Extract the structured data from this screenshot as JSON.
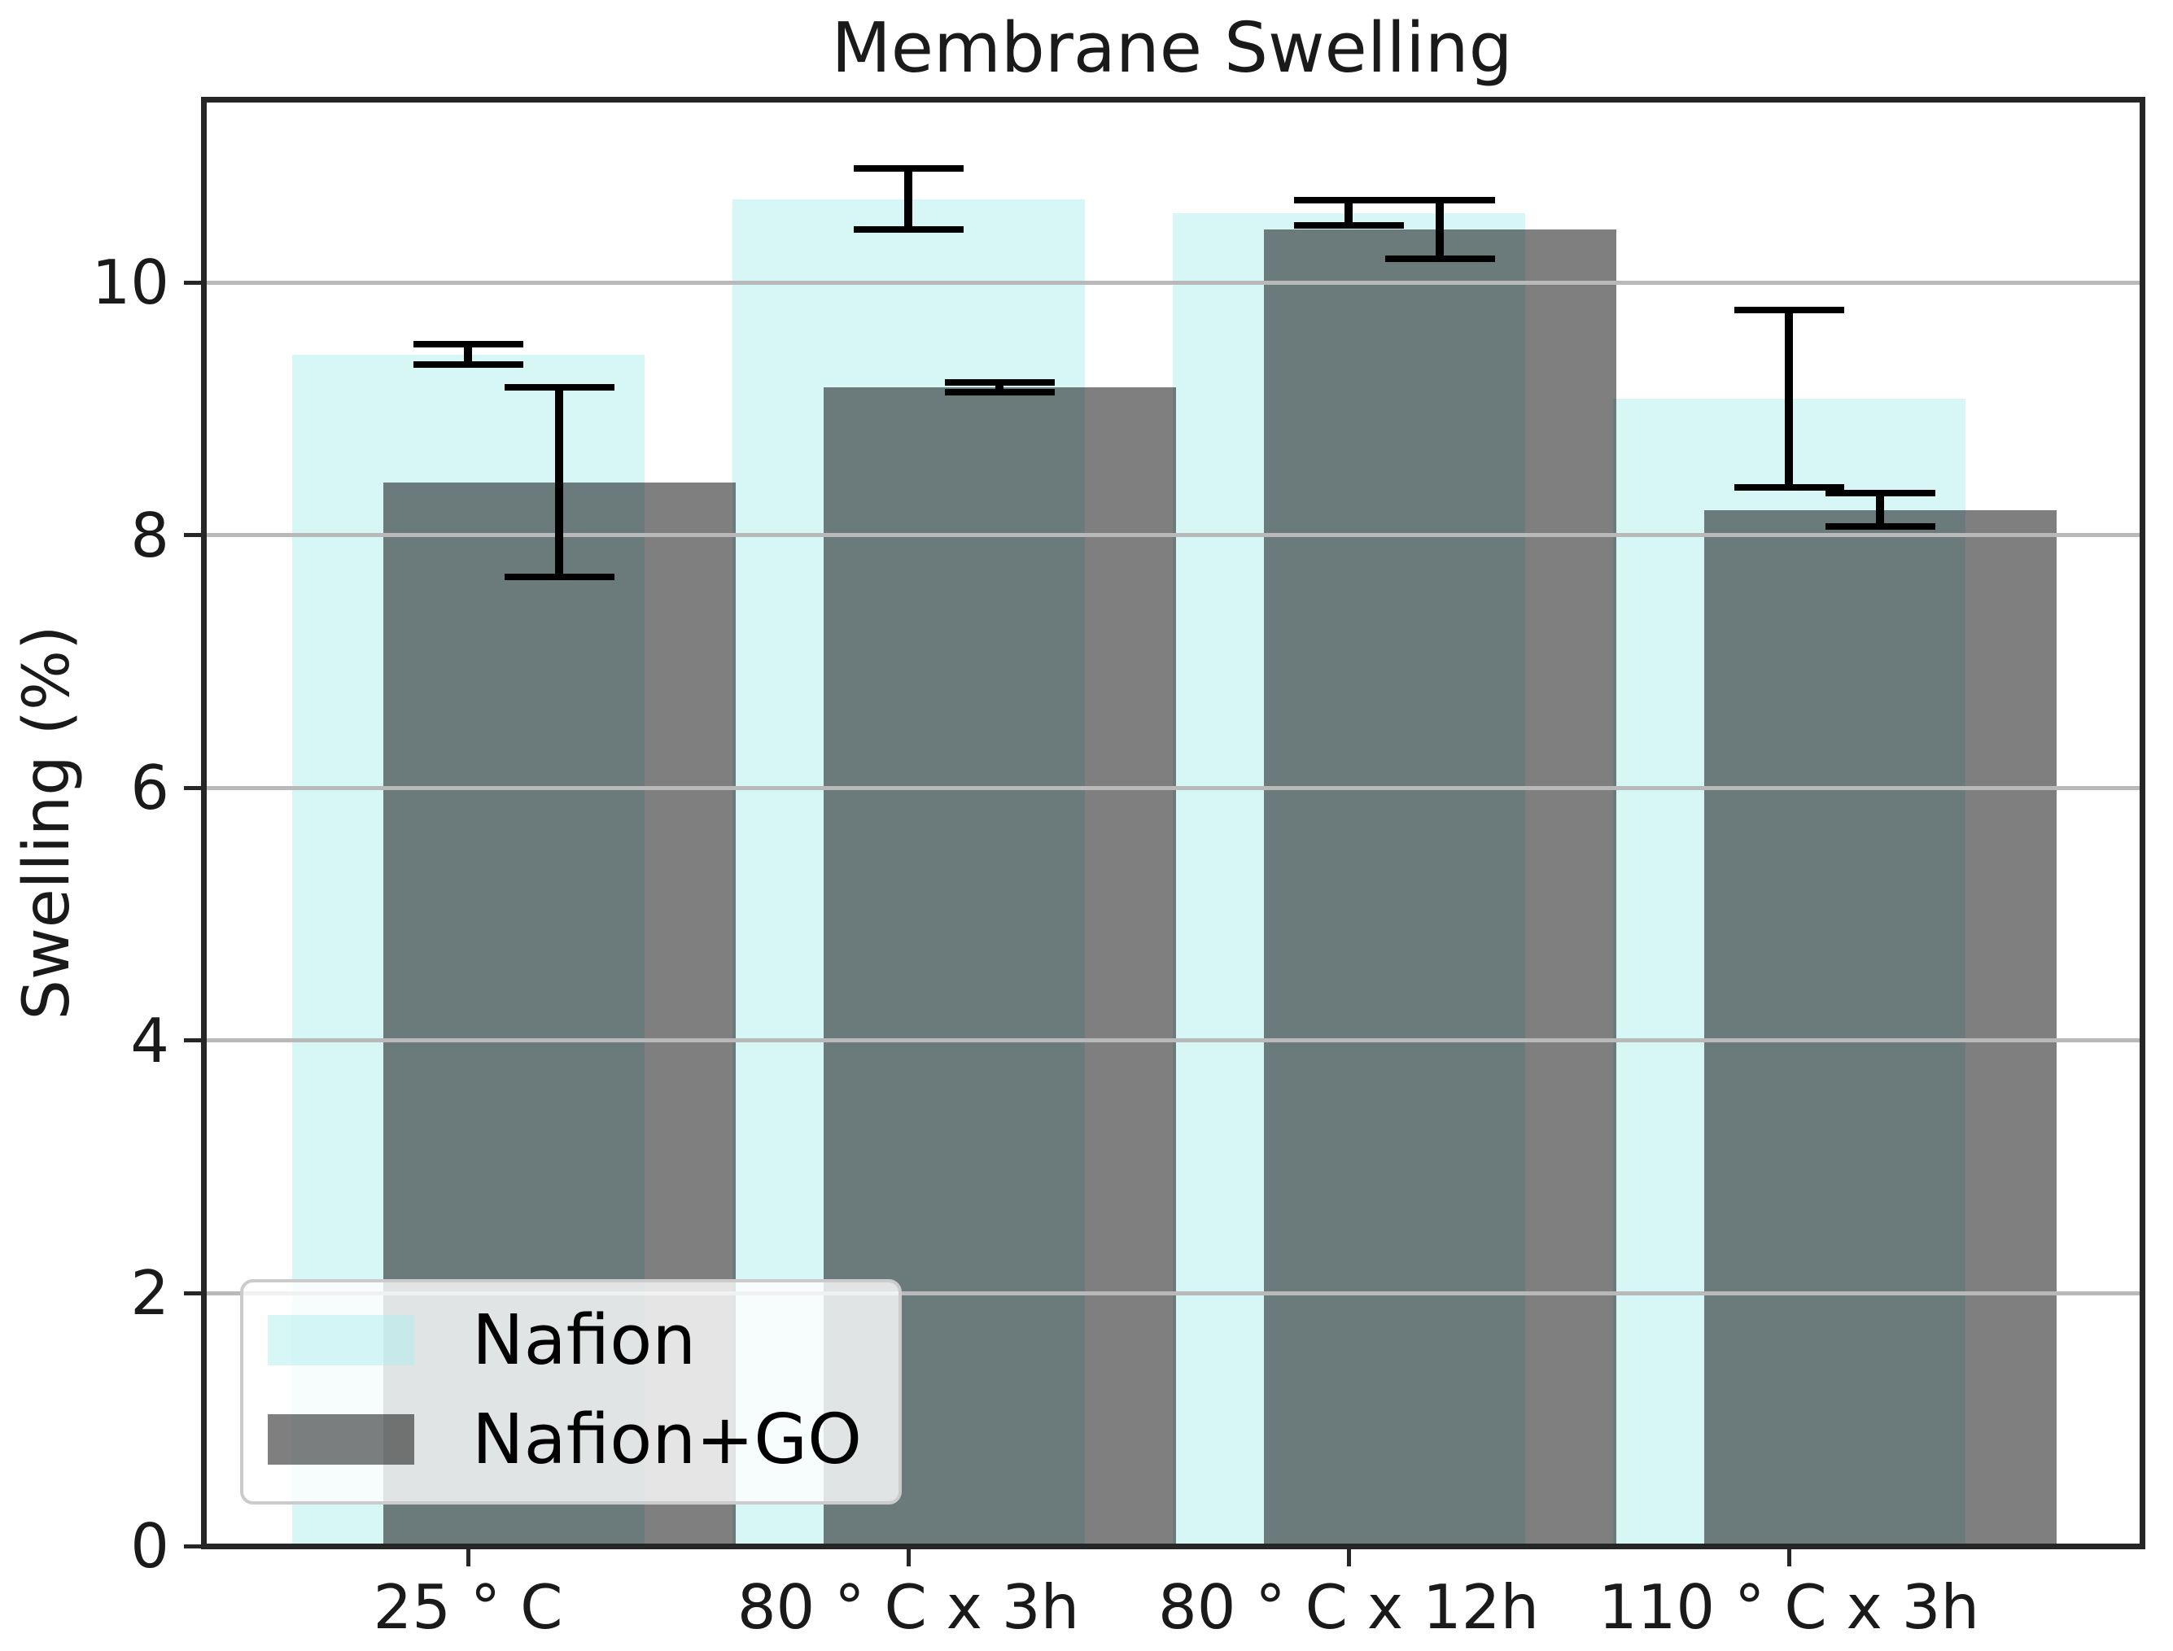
{
  "figure": {
    "background": "#ffffff"
  },
  "chart_data": {
    "type": "bar",
    "title": "Membrane Swelling",
    "xlabel": "",
    "ylabel": "Swelling (%)",
    "categories": [
      "25 ° C",
      "80 ° C x 3h",
      "80 ° C x 12h",
      "110 ° C x 3h"
    ],
    "series": [
      {
        "name": "Nafion",
        "color": "#AFEEEE",
        "alpha": 0.5,
        "values": [
          9.43,
          10.66,
          10.55,
          9.08
        ],
        "errors": [
          0.08,
          0.24,
          0.1,
          0.7
        ]
      },
      {
        "name": "Nafion+GO",
        "color": "#000000",
        "alpha": 0.5,
        "values": [
          8.42,
          9.17,
          10.42,
          8.2
        ],
        "errors": [
          0.75,
          0.04,
          0.23,
          0.13
        ]
      }
    ],
    "ylim": [
      0,
      11.45
    ],
    "yticks": [
      0,
      2,
      4,
      6,
      8,
      10
    ],
    "grid": true,
    "grid_color": "#b9b9b9",
    "grid_axis": "y",
    "axisbelow": false,
    "error_bar_color": "#000000",
    "spine_color": "#262626",
    "legend": {
      "position": "lower-left",
      "frame": true
    }
  }
}
